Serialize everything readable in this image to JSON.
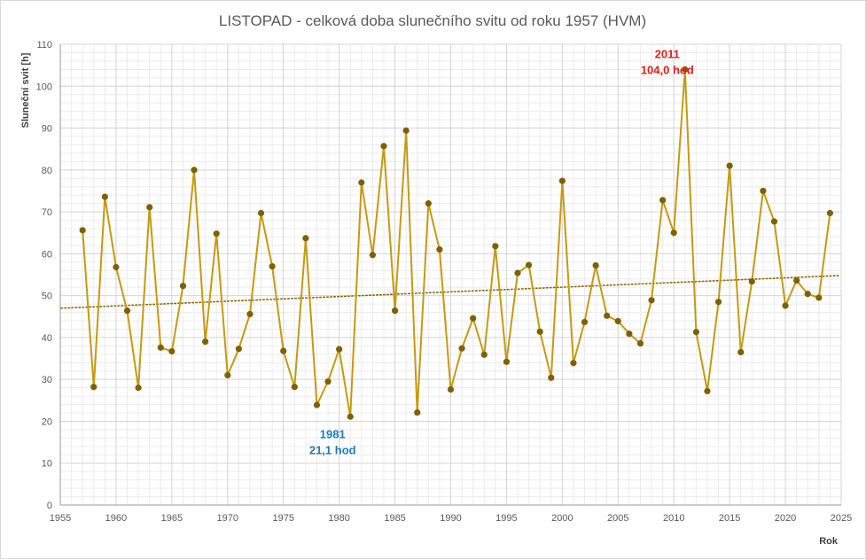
{
  "chart_data": {
    "type": "line",
    "title": "LISTOPAD - celková doba slunečního svitu od roku 1957 (HVM)",
    "xlabel": "Rok",
    "ylabel": "Sluneční svit [h]",
    "xlim": [
      1955,
      2025
    ],
    "ylim": [
      0,
      110
    ],
    "x_ticks": [
      1955,
      1960,
      1965,
      1970,
      1975,
      1980,
      1985,
      1990,
      1995,
      2000,
      2005,
      2010,
      2015,
      2020,
      2025
    ],
    "y_ticks": [
      0,
      10,
      20,
      30,
      40,
      50,
      60,
      70,
      80,
      90,
      100,
      110
    ],
    "grid": true,
    "series": [
      {
        "color": "#C49A12",
        "marker_color": "#7F6000",
        "x": [
          1957,
          1958,
          1959,
          1960,
          1961,
          1962,
          1963,
          1964,
          1965,
          1966,
          1967,
          1968,
          1969,
          1970,
          1971,
          1972,
          1973,
          1974,
          1975,
          1976,
          1977,
          1978,
          1979,
          1980,
          1981,
          1982,
          1983,
          1984,
          1985,
          1986,
          1987,
          1988,
          1989,
          1990,
          1991,
          1992,
          1993,
          1994,
          1995,
          1996,
          1997,
          1998,
          1999,
          2000,
          2001,
          2002,
          2003,
          2004,
          2005,
          2006,
          2007,
          2008,
          2009,
          2010,
          2011,
          2012,
          2013,
          2014,
          2015,
          2016,
          2017,
          2018,
          2019,
          2020,
          2021,
          2022,
          2023,
          2024
        ],
        "y": [
          65.6,
          28.2,
          73.6,
          56.8,
          46.4,
          28.0,
          71.1,
          37.6,
          36.7,
          52.3,
          80.0,
          39.0,
          64.8,
          31.0,
          37.3,
          45.6,
          69.7,
          57.0,
          36.8,
          28.2,
          63.7,
          23.9,
          29.5,
          37.2,
          21.1,
          77.0,
          59.7,
          85.7,
          46.4,
          89.4,
          22.1,
          72.0,
          61.0,
          27.6,
          37.4,
          44.6,
          35.9,
          61.8,
          34.2,
          55.4,
          57.3,
          41.4,
          30.4,
          77.4,
          33.9,
          43.7,
          57.2,
          45.2,
          43.9,
          40.9,
          38.6,
          48.9,
          72.8,
          65.0,
          104.0,
          41.3,
          27.2,
          48.5,
          81.0,
          36.5,
          53.4,
          75.0,
          67.7,
          47.6,
          53.6,
          50.4,
          49.5,
          69.7
        ]
      }
    ],
    "trendline": {
      "type": "linear",
      "color": "#8B6508",
      "y_start": 47.0,
      "y_end": 54.8
    },
    "annotations": [
      {
        "x": 2011,
        "y": 104.0,
        "line1": "2011",
        "line2": "104,0 hod",
        "color": "#E0201B"
      },
      {
        "x": 1981,
        "y": 21.1,
        "line1": "1981",
        "line2": "21,1 hod",
        "color": "#1F7BB6"
      }
    ]
  }
}
